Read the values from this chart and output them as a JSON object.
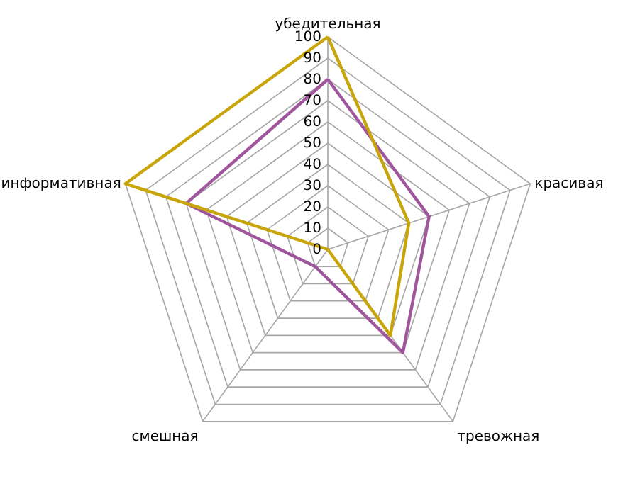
{
  "chart_data": {
    "type": "radar",
    "categories": [
      "убедительная",
      "красивая",
      "тревожная",
      "смешная",
      "информативная"
    ],
    "series": [
      {
        "color": "#a0569c",
        "values": [
          80,
          50,
          60,
          10,
          70
        ]
      },
      {
        "color": "#c9a50c",
        "values": [
          100,
          40,
          50,
          0,
          100
        ]
      }
    ],
    "ylim": [
      0,
      100
    ],
    "yticks": [
      0,
      10,
      20,
      30,
      40,
      50,
      60,
      70,
      80,
      90,
      100
    ],
    "grid": true
  }
}
